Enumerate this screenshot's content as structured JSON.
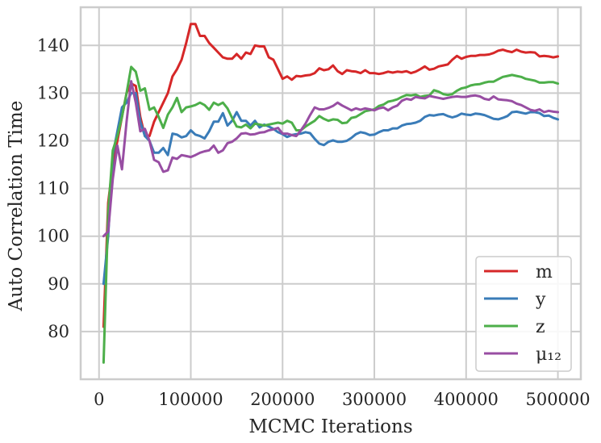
{
  "chart_data": {
    "type": "line",
    "xlabel": "MCMC Iterations",
    "ylabel": "Auto Correlation Time",
    "xlim": [
      -20000,
      525000
    ],
    "ylim": [
      70,
      148
    ],
    "xticks": [
      0,
      100000,
      200000,
      300000,
      400000,
      500000
    ],
    "yticks": [
      80,
      90,
      100,
      110,
      120,
      130,
      140
    ],
    "grid": true,
    "legend_position": "bottom-right",
    "x": [
      5000,
      10000,
      15000,
      20000,
      25000,
      30000,
      35000,
      40000,
      45000,
      50000,
      55000,
      60000,
      65000,
      70000,
      75000,
      80000,
      85000,
      90000,
      95000,
      100000,
      105000,
      110000,
      115000,
      120000,
      125000,
      130000,
      135000,
      140000,
      145000,
      150000,
      155000,
      160000,
      165000,
      170000,
      175000,
      180000,
      185000,
      190000,
      195000,
      200000,
      205000,
      210000,
      215000,
      220000,
      225000,
      230000,
      235000,
      240000,
      245000,
      250000,
      255000,
      260000,
      265000,
      270000,
      275000,
      280000,
      285000,
      290000,
      295000,
      300000,
      305000,
      310000,
      315000,
      320000,
      325000,
      330000,
      335000,
      340000,
      345000,
      350000,
      355000,
      360000,
      365000,
      370000,
      375000,
      380000,
      385000,
      390000,
      395000,
      400000,
      405000,
      410000,
      415000,
      420000,
      425000,
      430000,
      435000,
      440000,
      445000,
      450000,
      455000,
      460000,
      465000,
      470000,
      475000,
      480000,
      485000,
      490000,
      495000,
      500000
    ],
    "series": [
      {
        "name": "m",
        "color": "#d62728",
        "values": [
          81,
          107,
          115,
          120,
          125,
          130,
          132,
          131.5,
          125,
          121,
          121,
          124,
          126,
          128,
          130,
          133.5,
          135,
          137,
          140.5,
          144.5,
          144.5,
          142,
          142,
          140.5,
          139.5,
          138.5,
          137.5,
          137.2,
          137.2,
          138.2,
          137.2,
          138.5,
          138.2,
          140,
          139.8,
          139.8,
          137.5,
          137,
          135,
          133,
          133.5,
          132.8,
          133.6,
          133.5,
          133.7,
          133.8,
          134.2,
          135.2,
          134.8,
          135,
          135.8,
          134.6,
          134,
          134.8,
          134.6,
          134.5,
          134.2,
          134.8,
          134.2,
          134.2,
          134,
          134.2,
          134.5,
          134.3,
          134.5,
          134.4,
          134.6,
          134.2,
          134.5,
          135,
          135.6,
          134.9,
          135.1,
          135.6,
          135.8,
          136,
          137,
          137.8,
          137.2,
          137.6,
          137.8,
          137.8,
          138,
          138,
          138.1,
          138.4,
          138.9,
          139.1,
          138.8,
          138.6,
          139.1,
          138.7,
          138.5,
          138.6,
          138.5,
          137.7,
          137.8,
          137.7,
          137.5,
          137.7
        ]
      },
      {
        "name": "y",
        "color": "#3a7cb8",
        "values": [
          90,
          100,
          117,
          122,
          127,
          128,
          130,
          130,
          124,
          121,
          120,
          117.5,
          117.5,
          118.5,
          117,
          121.5,
          121.3,
          120.7,
          121,
          122.2,
          121.3,
          121,
          120.5,
          122,
          124,
          124,
          125.8,
          123.2,
          124.2,
          126,
          124.2,
          124.2,
          123.2,
          124.2,
          122.8,
          123.4,
          123,
          122.5,
          121.8,
          121.4,
          120.8,
          121.2,
          121.4,
          121.5,
          121.8,
          121.6,
          120.4,
          119.4,
          119.1,
          119.8,
          120.1,
          119.8,
          119.8,
          120,
          120.6,
          121.4,
          121.8,
          121.6,
          121.2,
          121.3,
          121.8,
          122.2,
          122.2,
          122.6,
          122.6,
          123.2,
          123.5,
          123.6,
          123.8,
          124.2,
          125,
          125.4,
          125.3,
          125.5,
          125.6,
          125.2,
          124.9,
          125.2,
          125.7,
          125.5,
          125.4,
          125.7,
          125.6,
          125.4,
          125,
          124.6,
          124.5,
          124.8,
          125.2,
          126,
          126.1,
          125.9,
          125.7,
          126,
          126,
          125.8,
          125.2,
          125.3,
          124.8,
          124.5
        ]
      },
      {
        "name": "z",
        "color": "#4daf4a",
        "values": [
          73.5,
          105,
          118,
          121,
          125,
          130,
          135.5,
          134.5,
          130.5,
          131,
          126.5,
          127,
          125,
          122.7,
          125.5,
          127,
          129,
          126,
          127,
          127.2,
          127.5,
          128,
          127.5,
          126.5,
          128,
          127.5,
          128,
          126.8,
          124.8,
          123,
          122.8,
          123.4,
          122.6,
          123.6,
          123.4,
          123.2,
          123.4,
          123.6,
          123.8,
          123.6,
          124.2,
          123.8,
          122.2,
          122.2,
          123,
          123.6,
          124.2,
          125.2,
          124.6,
          124.2,
          124.5,
          124.4,
          123.7,
          123.8,
          124.8,
          125,
          125.6,
          126.2,
          126.4,
          126.6,
          127.3,
          127.6,
          128.2,
          128.4,
          128.7,
          129.2,
          129.6,
          129.5,
          129.7,
          129.2,
          129.4,
          129.5,
          130.6,
          130.3,
          129.8,
          129.6,
          129.8,
          130.5,
          131,
          131.2,
          131.6,
          131.8,
          131.9,
          132.2,
          132.4,
          132.4,
          132.9,
          133.4,
          133.6,
          133.8,
          133.6,
          133.4,
          133,
          132.8,
          132.6,
          132.2,
          132.2,
          132.3,
          132.3,
          132
        ]
      },
      {
        "name": "μ₁₂",
        "color": "#984ea3",
        "values": [
          100,
          101,
          112,
          119,
          114,
          124,
          132.5,
          128,
          122,
          122.5,
          120,
          116,
          115.5,
          113.5,
          113.8,
          116.5,
          116.2,
          117,
          116.8,
          116.6,
          117,
          117.5,
          117.8,
          118,
          119,
          117.5,
          118,
          119.5,
          119.8,
          120.5,
          121.5,
          121.6,
          121.3,
          121.4,
          121.7,
          121.8,
          122.2,
          122.4,
          122.7,
          121.5,
          121.5,
          121.2,
          121,
          122.2,
          123.6,
          125.4,
          127,
          126.6,
          126.6,
          126.9,
          127.3,
          128,
          127.4,
          126.9,
          126.4,
          126.8,
          126.5,
          126.8,
          126.6,
          126.4,
          126.8,
          127,
          126.4,
          127,
          127.4,
          128.4,
          128.8,
          128.6,
          129.2,
          129,
          128.9,
          129.4,
          129.2,
          129,
          128.8,
          129,
          129.2,
          129.3,
          129.2,
          129.2,
          129.4,
          129.5,
          129.3,
          128.8,
          128.6,
          129.3,
          128.7,
          128.6,
          128.5,
          128.3,
          127.8,
          127.5,
          127,
          126.5,
          126.3,
          126.6,
          126,
          126.3,
          126.1,
          126
        ]
      }
    ]
  }
}
